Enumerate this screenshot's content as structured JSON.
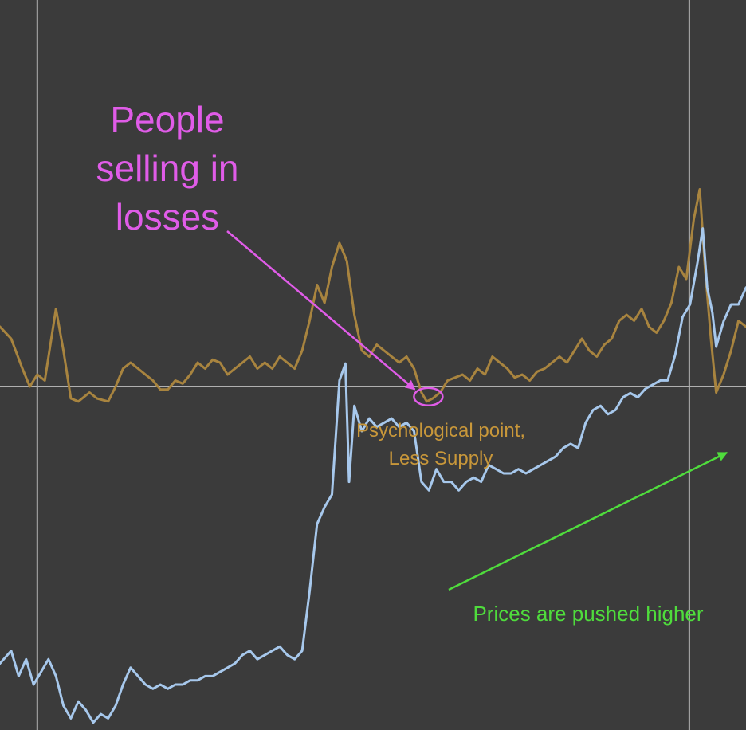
{
  "colors": {
    "background": "#3b3b3b",
    "grid": "#b0b0b0",
    "orange_series": "#a8843f",
    "blue_series": "#a7c8ec",
    "pink_annotation": "#e05ce8",
    "tan_annotation": "#c8973a",
    "green_annotation": "#4fdc3c"
  },
  "chart_data": {
    "type": "line",
    "title": "",
    "xlabel": "",
    "ylabel": "",
    "x_range": [
      0,
      100
    ],
    "grid": "one horizontal reference line and two vertical lines",
    "reference_lines": {
      "horizontal_y": 0,
      "vertical_x": [
        5,
        92.4
      ]
    },
    "series": [
      {
        "color": "#a8843f",
        "axis": "upper oscillator",
        "y_range": [
          -4,
          38
        ],
        "points": [
          [
            0,
            10
          ],
          [
            1.5,
            8
          ],
          [
            3,
            3
          ],
          [
            4,
            0
          ],
          [
            5,
            2
          ],
          [
            6,
            1
          ],
          [
            7.5,
            13
          ],
          [
            8.5,
            6
          ],
          [
            9.5,
            -2
          ],
          [
            10.5,
            -2.5
          ],
          [
            12,
            -1
          ],
          [
            13,
            -2
          ],
          [
            14.5,
            -2.5
          ],
          [
            15.5,
            0
          ],
          [
            16.5,
            3
          ],
          [
            17.5,
            4
          ],
          [
            18.5,
            3
          ],
          [
            19.5,
            2
          ],
          [
            20.5,
            1
          ],
          [
            21.5,
            -0.5
          ],
          [
            22.5,
            -0.5
          ],
          [
            23.5,
            1
          ],
          [
            24.5,
            0.5
          ],
          [
            25.5,
            2
          ],
          [
            26.5,
            4
          ],
          [
            27.5,
            3
          ],
          [
            28.5,
            4.5
          ],
          [
            29.5,
            4
          ],
          [
            30.5,
            2
          ],
          [
            31.5,
            3
          ],
          [
            32.5,
            4
          ],
          [
            33.5,
            5
          ],
          [
            34.5,
            3
          ],
          [
            35.5,
            4
          ],
          [
            36.5,
            3
          ],
          [
            37.5,
            5
          ],
          [
            38.5,
            4
          ],
          [
            39.5,
            3
          ],
          [
            40.5,
            6
          ],
          [
            41.5,
            11
          ],
          [
            42.5,
            17
          ],
          [
            43.5,
            14
          ],
          [
            44.5,
            20
          ],
          [
            45.5,
            24
          ],
          [
            46.5,
            21
          ],
          [
            47.5,
            12
          ],
          [
            48.5,
            6
          ],
          [
            49.5,
            5
          ],
          [
            50.5,
            7
          ],
          [
            51.5,
            6
          ],
          [
            52.5,
            5
          ],
          [
            53.5,
            4
          ],
          [
            54.5,
            5
          ],
          [
            55.5,
            3
          ],
          [
            56.5,
            -1
          ],
          [
            57.2,
            -2.5
          ],
          [
            58,
            -2
          ],
          [
            59,
            -1
          ],
          [
            60,
            1
          ],
          [
            61,
            1.5
          ],
          [
            62,
            2
          ],
          [
            63,
            1
          ],
          [
            64,
            3
          ],
          [
            65,
            2
          ],
          [
            66,
            5
          ],
          [
            67,
            4
          ],
          [
            68,
            3
          ],
          [
            69,
            1.5
          ],
          [
            70,
            2
          ],
          [
            71,
            1
          ],
          [
            72,
            2.5
          ],
          [
            73,
            3
          ],
          [
            74,
            4
          ],
          [
            75,
            5
          ],
          [
            76,
            4
          ],
          [
            77,
            6
          ],
          [
            78,
            8
          ],
          [
            79,
            6
          ],
          [
            80,
            5
          ],
          [
            81,
            7
          ],
          [
            82,
            8
          ],
          [
            83,
            11
          ],
          [
            84,
            12
          ],
          [
            85,
            11
          ],
          [
            86,
            13
          ],
          [
            87,
            10
          ],
          [
            88,
            9
          ],
          [
            89,
            11
          ],
          [
            90,
            14
          ],
          [
            91,
            20
          ],
          [
            92,
            18
          ],
          [
            93,
            28
          ],
          [
            93.8,
            33
          ],
          [
            94.5,
            20
          ],
          [
            95.3,
            8
          ],
          [
            96,
            -1
          ],
          [
            97,
            2
          ],
          [
            98,
            6
          ],
          [
            99,
            11
          ],
          [
            100,
            10
          ]
        ]
      },
      {
        "color": "#a7c8ec",
        "axis": "lower price",
        "y_range": [
          0,
          100
        ],
        "points": [
          [
            0,
            15
          ],
          [
            1.5,
            18
          ],
          [
            2.5,
            12
          ],
          [
            3.5,
            16
          ],
          [
            4.5,
            10
          ],
          [
            5.5,
            13
          ],
          [
            6.5,
            16
          ],
          [
            7.5,
            12
          ],
          [
            8.5,
            5
          ],
          [
            9.5,
            2
          ],
          [
            10.5,
            6
          ],
          [
            11.5,
            4
          ],
          [
            12.5,
            1
          ],
          [
            13.5,
            3
          ],
          [
            14.5,
            2
          ],
          [
            15.5,
            5
          ],
          [
            16.5,
            10
          ],
          [
            17.5,
            14
          ],
          [
            18.5,
            12
          ],
          [
            19.5,
            10
          ],
          [
            20.5,
            9
          ],
          [
            21.5,
            10
          ],
          [
            22.5,
            9
          ],
          [
            23.5,
            10
          ],
          [
            24.5,
            10
          ],
          [
            25.5,
            11
          ],
          [
            26.5,
            11
          ],
          [
            27.5,
            12
          ],
          [
            28.5,
            12
          ],
          [
            29.5,
            13
          ],
          [
            30.5,
            14
          ],
          [
            31.5,
            15
          ],
          [
            32.5,
            17
          ],
          [
            33.5,
            18
          ],
          [
            34.5,
            16
          ],
          [
            35.5,
            17
          ],
          [
            36.5,
            18
          ],
          [
            37.5,
            19
          ],
          [
            38.5,
            17
          ],
          [
            39.5,
            16
          ],
          [
            40.5,
            18
          ],
          [
            41.5,
            32
          ],
          [
            42.5,
            48
          ],
          [
            43.5,
            52
          ],
          [
            44.5,
            55
          ],
          [
            45.5,
            82
          ],
          [
            46.3,
            86
          ],
          [
            46.8,
            58
          ],
          [
            47.5,
            76
          ],
          [
            48.5,
            70
          ],
          [
            49.5,
            73
          ],
          [
            50.5,
            71
          ],
          [
            51.5,
            72
          ],
          [
            52.5,
            73
          ],
          [
            53.5,
            71
          ],
          [
            54.5,
            72
          ],
          [
            55.5,
            70
          ],
          [
            56.5,
            58
          ],
          [
            57.5,
            56
          ],
          [
            58.5,
            61
          ],
          [
            59.5,
            58
          ],
          [
            60.5,
            58
          ],
          [
            61.5,
            56
          ],
          [
            62.5,
            58
          ],
          [
            63.5,
            59
          ],
          [
            64.5,
            58
          ],
          [
            65.5,
            62
          ],
          [
            66.5,
            61
          ],
          [
            67.5,
            60
          ],
          [
            68.5,
            60
          ],
          [
            69.5,
            61
          ],
          [
            70.5,
            60
          ],
          [
            71.5,
            61
          ],
          [
            72.5,
            62
          ],
          [
            73.5,
            63
          ],
          [
            74.5,
            64
          ],
          [
            75.5,
            66
          ],
          [
            76.5,
            67
          ],
          [
            77.5,
            66
          ],
          [
            78.5,
            72
          ],
          [
            79.5,
            75
          ],
          [
            80.5,
            76
          ],
          [
            81.5,
            74
          ],
          [
            82.5,
            75
          ],
          [
            83.5,
            78
          ],
          [
            84.5,
            79
          ],
          [
            85.5,
            78
          ],
          [
            86.5,
            80
          ],
          [
            87.5,
            81
          ],
          [
            88.5,
            82
          ],
          [
            89.5,
            82
          ],
          [
            90.5,
            88
          ],
          [
            91.5,
            97
          ],
          [
            92.5,
            100
          ],
          [
            93.5,
            110
          ],
          [
            94.2,
            118
          ],
          [
            94.8,
            104
          ],
          [
            95.5,
            98
          ],
          [
            96,
            90
          ],
          [
            97,
            96
          ],
          [
            98,
            100
          ],
          [
            99,
            100
          ],
          [
            100,
            104
          ]
        ]
      }
    ],
    "annotations": [
      {
        "lines": [
          "People",
          "selling in",
          "losses"
        ],
        "color": "#e05ce8"
      },
      {
        "lines": [
          "Psychological point,",
          "Less Supply"
        ],
        "color": "#c8973a"
      },
      {
        "lines": [
          "Prices are pushed higher"
        ],
        "color": "#4fdc3c"
      }
    ]
  },
  "annotations": {
    "people_line1": "People",
    "people_line2": "selling in",
    "people_line3": "losses",
    "psych_line1": "Psychological point,",
    "psych_line2": "Less Supply",
    "prices_text": "Prices are pushed higher"
  }
}
